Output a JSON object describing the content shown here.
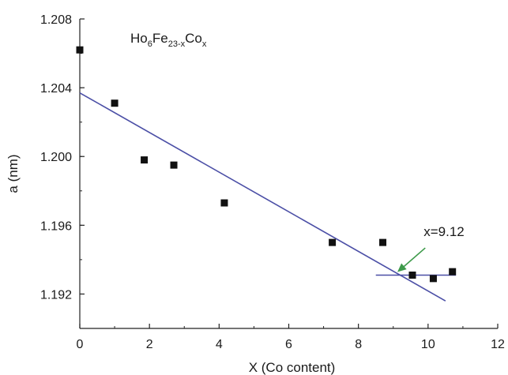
{
  "chart_data": {
    "type": "scatter",
    "title": "",
    "xlabel": "X (Co content)",
    "ylabel": "a (nm)",
    "xlim": [
      0,
      12
    ],
    "ylim": [
      1.19,
      1.208
    ],
    "xticks": [
      0,
      2,
      4,
      6,
      8,
      10,
      12
    ],
    "yticks": [
      1.192,
      1.196,
      1.2,
      1.204,
      1.208
    ],
    "xtick_labels": [
      "0",
      "2",
      "4",
      "6",
      "8",
      "10",
      "12"
    ],
    "ytick_labels": [
      "1.192",
      "1.196",
      "1.200",
      "1.204",
      "1.208"
    ],
    "formula": {
      "base": "Ho",
      "sub1": "6",
      "mid": "Fe",
      "sub2": "23-x",
      "end": "Co",
      "sub3": "x"
    },
    "points": [
      {
        "x": 0.0,
        "y": 1.2062
      },
      {
        "x": 1.0,
        "y": 1.2031
      },
      {
        "x": 1.85,
        "y": 1.1998
      },
      {
        "x": 2.7,
        "y": 1.1995
      },
      {
        "x": 4.15,
        "y": 1.1973
      },
      {
        "x": 7.25,
        "y": 1.195
      },
      {
        "x": 8.7,
        "y": 1.195
      },
      {
        "x": 9.55,
        "y": 1.1931
      },
      {
        "x": 10.15,
        "y": 1.1929
      },
      {
        "x": 10.7,
        "y": 1.1933
      }
    ],
    "fit_lines": [
      {
        "x": [
          0,
          10.5
        ],
        "y": [
          1.2037,
          1.1916
        ]
      },
      {
        "x": [
          8.5,
          10.8
        ],
        "y": [
          1.1931,
          1.1931
        ]
      }
    ],
    "annotation": {
      "text": "x=9.12",
      "point": {
        "x": 9.12,
        "y": 1.1931
      },
      "text_at": {
        "x": 10.1,
        "y": 1.1956
      }
    },
    "colors": {
      "fit_line": "#4b4fa6",
      "arrow": "#3d9a4a",
      "marker": "#111111",
      "axis": "#222222"
    },
    "grid": false,
    "legend": "none"
  }
}
